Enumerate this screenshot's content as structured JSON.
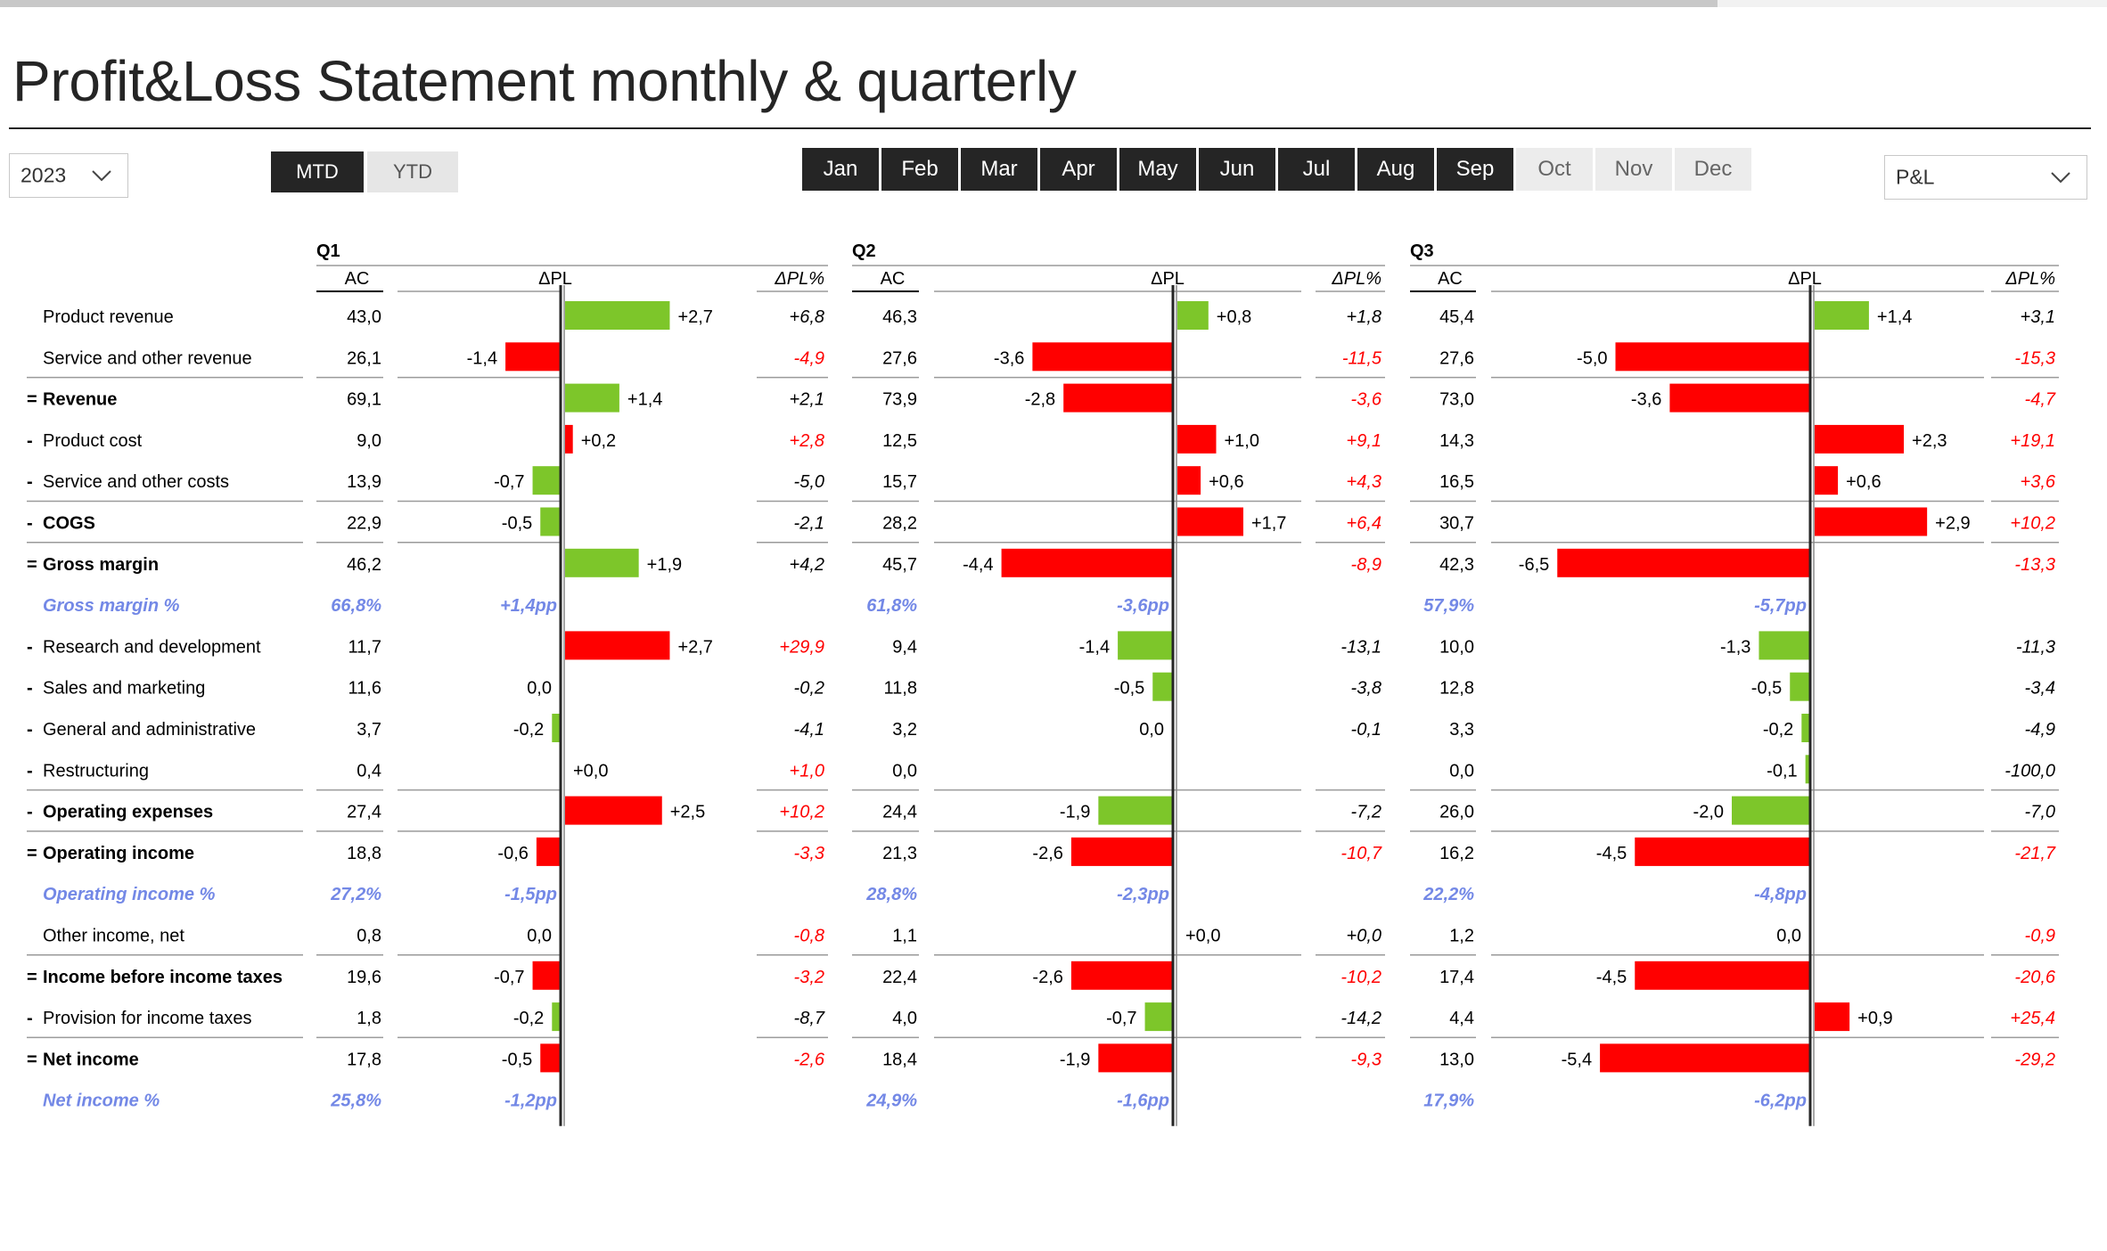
{
  "app": {
    "title": "Profit&Loss Statement monthly & quarterly",
    "progress_fraction": 0.815
  },
  "filters": {
    "year": "2023",
    "mode_tabs": [
      {
        "label": "MTD",
        "selected": true
      },
      {
        "label": "YTD",
        "selected": false
      }
    ],
    "months": [
      {
        "label": "Jan",
        "selected": true
      },
      {
        "label": "Feb",
        "selected": true
      },
      {
        "label": "Mar",
        "selected": true
      },
      {
        "label": "Apr",
        "selected": true
      },
      {
        "label": "May",
        "selected": true
      },
      {
        "label": "Jun",
        "selected": true
      },
      {
        "label": "Jul",
        "selected": true
      },
      {
        "label": "Aug",
        "selected": true
      },
      {
        "label": "Sep",
        "selected": true
      },
      {
        "label": "Oct",
        "selected": false
      },
      {
        "label": "Nov",
        "selected": false
      },
      {
        "label": "Dec",
        "selected": false
      }
    ],
    "report": "P&L"
  },
  "colors": {
    "positive": "#7dc62a",
    "negative": "#ff0000",
    "percent_row": "#7388e6",
    "dark": "#252525"
  },
  "table": {
    "column_headers": {
      "ac": "AC",
      "dpl": "ΔPL",
      "dpl_pct": "ΔPL%"
    },
    "rows": [
      {
        "prefix": "",
        "label": "Product revenue",
        "style": "normal",
        "cost": false
      },
      {
        "prefix": "",
        "label": "Service and other revenue",
        "style": "normal",
        "cost": false
      },
      {
        "prefix": "=",
        "label": "Revenue",
        "style": "bold",
        "cost": false
      },
      {
        "prefix": "-",
        "label": "Product cost",
        "style": "normal",
        "cost": true
      },
      {
        "prefix": "-",
        "label": "Service and other costs",
        "style": "normal",
        "cost": true
      },
      {
        "prefix": "-",
        "label": "COGS",
        "style": "bold",
        "cost": true
      },
      {
        "prefix": "=",
        "label": "Gross margin",
        "style": "bold",
        "cost": false
      },
      {
        "prefix": "",
        "label": "Gross margin %",
        "style": "percent",
        "cost": false
      },
      {
        "prefix": "-",
        "label": "Research and development",
        "style": "normal",
        "cost": true
      },
      {
        "prefix": "-",
        "label": "Sales and marketing",
        "style": "normal",
        "cost": true
      },
      {
        "prefix": "-",
        "label": "General and administrative",
        "style": "normal",
        "cost": true
      },
      {
        "prefix": "-",
        "label": "Restructuring",
        "style": "normal",
        "cost": true
      },
      {
        "prefix": "-",
        "label": "Operating expenses",
        "style": "bold",
        "cost": true
      },
      {
        "prefix": "=",
        "label": "Operating income",
        "style": "bold",
        "cost": false
      },
      {
        "prefix": "",
        "label": "Operating income %",
        "style": "percent",
        "cost": false
      },
      {
        "prefix": "",
        "label": "Other income, net",
        "style": "normal",
        "cost": false
      },
      {
        "prefix": "=",
        "label": "Income before income taxes",
        "style": "bold",
        "cost": false
      },
      {
        "prefix": "-",
        "label": "Provision for income taxes",
        "style": "normal",
        "cost": true
      },
      {
        "prefix": "=",
        "label": "Net income",
        "style": "bold",
        "cost": false
      },
      {
        "prefix": "",
        "label": "Net income %",
        "style": "percent",
        "cost": false
      }
    ]
  },
  "chart_data": [
    {
      "type": "bar",
      "title": "Q1",
      "orientation": "horizontal",
      "series": [
        {
          "name": "AC",
          "values": [
            "43,0",
            "26,1",
            "69,1",
            "9,0",
            "13,9",
            "22,9",
            "46,2",
            "66,8%",
            "11,7",
            "11,6",
            "3,7",
            "0,4",
            "27,4",
            "18,8",
            "27,2%",
            "0,8",
            "19,6",
            "1,8",
            "17,8",
            "25,8%"
          ]
        },
        {
          "name": "ΔPL",
          "values": [
            2.7,
            -1.4,
            1.4,
            0.2,
            -0.7,
            -0.5,
            1.9,
            null,
            2.7,
            0.0,
            -0.2,
            0.0,
            2.5,
            -0.6,
            null,
            0.0,
            -0.7,
            -0.2,
            -0.5,
            null
          ],
          "labels": [
            "+2,7",
            "-1,4",
            "+1,4",
            "+0,2",
            "-0,7",
            "-0,5",
            "+1,9",
            "+1,4pp",
            "+2,7",
            "0,0",
            "-0,2",
            "+0,0",
            "+2,5",
            "-0,6",
            "-1,5pp",
            "0,0",
            "-0,7",
            "-0,2",
            "-0,5",
            "-1,2pp"
          ]
        },
        {
          "name": "ΔPL%",
          "values": [
            "+6,8",
            "-4,9",
            "+2,1",
            "+2,8",
            "-5,0",
            "-2,1",
            "+4,2",
            "",
            "+29,9",
            "-0,2",
            "-4,1",
            "+1,0",
            "+10,2",
            "-3,3",
            "",
            "-0,8",
            "-3,2",
            "-8,7",
            "-2,6",
            ""
          ]
        }
      ]
    },
    {
      "type": "bar",
      "title": "Q2",
      "orientation": "horizontal",
      "series": [
        {
          "name": "AC",
          "values": [
            "46,3",
            "27,6",
            "73,9",
            "12,5",
            "15,7",
            "28,2",
            "45,7",
            "61,8%",
            "9,4",
            "11,8",
            "3,2",
            "0,0",
            "24,4",
            "21,3",
            "28,8%",
            "1,1",
            "22,4",
            "4,0",
            "18,4",
            "24,9%"
          ]
        },
        {
          "name": "ΔPL",
          "values": [
            0.8,
            -3.6,
            -2.8,
            1.0,
            0.6,
            1.7,
            -4.4,
            null,
            -1.4,
            -0.5,
            0.0,
            0.0,
            -1.9,
            -2.6,
            null,
            0.0,
            -2.6,
            -0.7,
            -1.9,
            null
          ],
          "labels": [
            "+0,8",
            "-3,6",
            "-2,8",
            "+1,0",
            "+0,6",
            "+1,7",
            "-4,4",
            "-3,6pp",
            "-1,4",
            "-0,5",
            "0,0",
            "",
            "-1,9",
            "-2,6",
            "-2,3pp",
            "+0,0",
            "-2,6",
            "-0,7",
            "-1,9",
            "-1,6pp"
          ]
        },
        {
          "name": "ΔPL%",
          "values": [
            "+1,8",
            "-11,5",
            "-3,6",
            "+9,1",
            "+4,3",
            "+6,4",
            "-8,9",
            "",
            "-13,1",
            "-3,8",
            "-0,1",
            "",
            "-7,2",
            "-10,7",
            "",
            "+0,0",
            "-10,2",
            "-14,2",
            "-9,3",
            ""
          ]
        }
      ]
    },
    {
      "type": "bar",
      "title": "Q3",
      "orientation": "horizontal",
      "series": [
        {
          "name": "AC",
          "values": [
            "45,4",
            "27,6",
            "73,0",
            "14,3",
            "16,5",
            "30,7",
            "42,3",
            "57,9%",
            "10,0",
            "12,8",
            "3,3",
            "0,0",
            "26,0",
            "16,2",
            "22,2%",
            "1,2",
            "17,4",
            "4,4",
            "13,0",
            "17,9%"
          ]
        },
        {
          "name": "ΔPL",
          "values": [
            1.4,
            -5.0,
            -3.6,
            2.3,
            0.6,
            2.9,
            -6.5,
            null,
            -1.3,
            -0.5,
            -0.2,
            -0.1,
            -2.0,
            -4.5,
            null,
            0.0,
            -4.5,
            0.9,
            -5.4,
            null
          ],
          "labels": [
            "+1,4",
            "-5,0",
            "-3,6",
            "+2,3",
            "+0,6",
            "+2,9",
            "-6,5",
            "-5,7pp",
            "-1,3",
            "-0,5",
            "-0,2",
            "-0,1",
            "-2,0",
            "-4,5",
            "-4,8pp",
            "0,0",
            "-4,5",
            "+0,9",
            "-5,4",
            "-6,2pp"
          ]
        },
        {
          "name": "ΔPL%",
          "values": [
            "+3,1",
            "-15,3",
            "-4,7",
            "+19,1",
            "+3,6",
            "+10,2",
            "-13,3",
            "",
            "-11,3",
            "-3,4",
            "-4,9",
            "-100,0",
            "-7,0",
            "-21,7",
            "",
            "-0,9",
            "-20,6",
            "+25,4",
            "-29,2",
            ""
          ]
        }
      ]
    }
  ]
}
